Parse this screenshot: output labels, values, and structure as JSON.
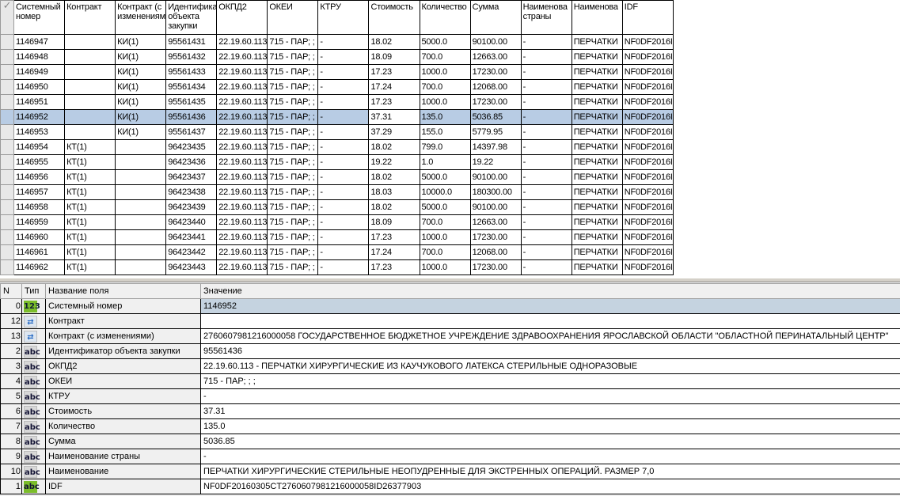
{
  "grid": {
    "columns": [
      "Системный номер",
      "Контракт",
      "Контракт (с изменениями)",
      "Идентификатор объекта закупки",
      "ОКПД2",
      "ОКЕИ",
      "КТРУ",
      "Стоимость",
      "Количество",
      "Сумма",
      "Наименование страны",
      "Наименование",
      "IDF"
    ],
    "column_headers_visible": [
      "Системный номер",
      "Контракт",
      "Контракт (с изменениям",
      "Идентифика объекта закупки",
      "ОКПД2",
      "ОКЕИ",
      "КТРУ",
      "Стоимость",
      "Количество",
      "Сумма",
      "Наименова страны",
      "Наименова",
      "IDF"
    ],
    "selected_index": 5,
    "rows": [
      [
        "1146947",
        "",
        "КИ(1)",
        "95561431",
        "22.19.60.113",
        "715 - ПАР; ;",
        "-",
        "18.02",
        "5000.0",
        "90100.00",
        "-",
        "ПЕРЧАТКИ",
        "NF0DF2016I"
      ],
      [
        "1146948",
        "",
        "КИ(1)",
        "95561432",
        "22.19.60.113",
        "715 - ПАР; ;",
        "-",
        "18.09",
        "700.0",
        "12663.00",
        "-",
        "ПЕРЧАТКИ",
        "NF0DF2016I"
      ],
      [
        "1146949",
        "",
        "КИ(1)",
        "95561433",
        "22.19.60.113",
        "715 - ПАР; ;",
        "-",
        "17.23",
        "1000.0",
        "17230.00",
        "-",
        "ПЕРЧАТКИ",
        "NF0DF2016I"
      ],
      [
        "1146950",
        "",
        "КИ(1)",
        "95561434",
        "22.19.60.113",
        "715 - ПАР; ;",
        "-",
        "17.24",
        "700.0",
        "12068.00",
        "-",
        "ПЕРЧАТКИ",
        "NF0DF2016I"
      ],
      [
        "1146951",
        "",
        "КИ(1)",
        "95561435",
        "22.19.60.113",
        "715 - ПАР; ;",
        "-",
        "17.23",
        "1000.0",
        "17230.00",
        "-",
        "ПЕРЧАТКИ",
        "NF0DF2016I"
      ],
      [
        "1146952",
        "",
        "КИ(1)",
        "95561436",
        "22.19.60.113",
        "715 - ПАР; ;",
        "-",
        "37.31",
        "135.0",
        "5036.85",
        "-",
        "ПЕРЧАТКИ",
        "NF0DF2016I"
      ],
      [
        "1146953",
        "",
        "КИ(1)",
        "95561437",
        "22.19.60.113",
        "715 - ПАР; ;",
        "-",
        "37.29",
        "155.0",
        "5779.95",
        "-",
        "ПЕРЧАТКИ",
        "NF0DF2016I"
      ],
      [
        "1146954",
        "КТ(1)",
        "",
        "96423435",
        "22.19.60.113",
        "715 - ПАР; ;",
        "-",
        "18.02",
        "799.0",
        "14397.98",
        "-",
        "ПЕРЧАТКИ",
        "NF0DF2016I"
      ],
      [
        "1146955",
        "КТ(1)",
        "",
        "96423436",
        "22.19.60.113",
        "715 - ПАР; ;",
        "-",
        "19.22",
        "1.0",
        "19.22",
        "-",
        "ПЕРЧАТКИ",
        "NF0DF2016I"
      ],
      [
        "1146956",
        "КТ(1)",
        "",
        "96423437",
        "22.19.60.113",
        "715 - ПАР; ;",
        "-",
        "18.02",
        "5000.0",
        "90100.00",
        "-",
        "ПЕРЧАТКИ",
        "NF0DF2016I"
      ],
      [
        "1146957",
        "КТ(1)",
        "",
        "96423438",
        "22.19.60.113",
        "715 - ПАР; ;",
        "-",
        "18.03",
        "10000.0",
        "180300.00",
        "-",
        "ПЕРЧАТКИ",
        "NF0DF2016I"
      ],
      [
        "1146958",
        "КТ(1)",
        "",
        "96423439",
        "22.19.60.113",
        "715 - ПАР; ;",
        "-",
        "18.02",
        "5000.0",
        "90100.00",
        "-",
        "ПЕРЧАТКИ",
        "NF0DF2016I"
      ],
      [
        "1146959",
        "КТ(1)",
        "",
        "96423440",
        "22.19.60.113",
        "715 - ПАР; ;",
        "-",
        "18.09",
        "700.0",
        "12663.00",
        "-",
        "ПЕРЧАТКИ",
        "NF0DF2016I"
      ],
      [
        "1146960",
        "КТ(1)",
        "",
        "96423441",
        "22.19.60.113",
        "715 - ПАР; ;",
        "-",
        "17.23",
        "1000.0",
        "17230.00",
        "-",
        "ПЕРЧАТКИ",
        "NF0DF2016I"
      ],
      [
        "1146961",
        "КТ(1)",
        "",
        "96423442",
        "22.19.60.113",
        "715 - ПАР; ;",
        "-",
        "17.24",
        "700.0",
        "12068.00",
        "-",
        "ПЕРЧАТКИ",
        "NF0DF2016I"
      ],
      [
        "1146962",
        "КТ(1)",
        "",
        "96423443",
        "22.19.60.113",
        "715 - ПАР; ;",
        "-",
        "17.23",
        "1000.0",
        "17230.00",
        "-",
        "ПЕРЧАТКИ",
        "NF0DF2016I"
      ]
    ]
  },
  "props": {
    "headers": {
      "n": "N",
      "type": "Тип",
      "name": "Название поля",
      "value": "Значение"
    },
    "rows": [
      {
        "n": "0",
        "type": "123",
        "icon": "number-type-icon",
        "name": "Системный номер",
        "value": "1146952"
      },
      {
        "n": "12",
        "type": "",
        "icon": "link-type-icon",
        "name": "Контракт",
        "value": ""
      },
      {
        "n": "13",
        "type": "",
        "icon": "link-type-icon",
        "name": "Контракт (с изменениями)",
        "value": "2760607981216000058 ГОСУДАРСТВЕННОЕ БЮДЖЕТНОЕ УЧРЕЖДЕНИЕ ЗДРАВООХРАНЕНИЯ ЯРОСЛАВСКОЙ ОБЛАСТИ \"ОБЛАСТНОЙ ПЕРИНАТАЛЬНЫЙ ЦЕНТР\""
      },
      {
        "n": "2",
        "type": "abc",
        "icon": "text-type-icon",
        "name": "Идентификатор объекта закупки",
        "value": "95561436"
      },
      {
        "n": "3",
        "type": "abc",
        "icon": "text-type-icon",
        "name": "ОКПД2",
        "value": "22.19.60.113 - ПЕРЧАТКИ ХИРУРГИЧЕСКИЕ ИЗ КАУЧУКОВОГО ЛАТЕКСА СТЕРИЛЬНЫЕ ОДНОРАЗОВЫЕ"
      },
      {
        "n": "4",
        "type": "abc",
        "icon": "text-type-icon",
        "name": "ОКЕИ",
        "value": "715 - ПАР; ; ;"
      },
      {
        "n": "5",
        "type": "abc",
        "icon": "text-type-icon",
        "name": "КТРУ",
        "value": "-"
      },
      {
        "n": "6",
        "type": "abc",
        "icon": "text-type-icon",
        "name": "Стоимость",
        "value": "37.31"
      },
      {
        "n": "7",
        "type": "abc",
        "icon": "text-type-icon",
        "name": "Количество",
        "value": "135.0"
      },
      {
        "n": "8",
        "type": "abc",
        "icon": "text-type-icon",
        "name": "Сумма",
        "value": "5036.85"
      },
      {
        "n": "9",
        "type": "abc",
        "icon": "text-type-icon",
        "name": "Наименование страны",
        "value": "-"
      },
      {
        "n": "10",
        "type": "abc",
        "icon": "text-type-icon",
        "name": "Наименование",
        "value": "ПЕРЧАТКИ ХИРУРГИЧЕСКИЕ СТЕРИЛЬНЫЕ НЕОПУДРЕННЫЕ ДЛЯ ЭКСТРЕННЫХ ОПЕРАЦИЙ. РАЗМЕР 7,0"
      },
      {
        "n": "1",
        "type": "abc",
        "icon": "key-text-type-icon",
        "name": "IDF",
        "value": "NF0DF20160305CT2760607981216000058ID26377903"
      }
    ]
  },
  "colors": {
    "selection": "#b8cce4",
    "number_icon": "#7bbd2a"
  }
}
